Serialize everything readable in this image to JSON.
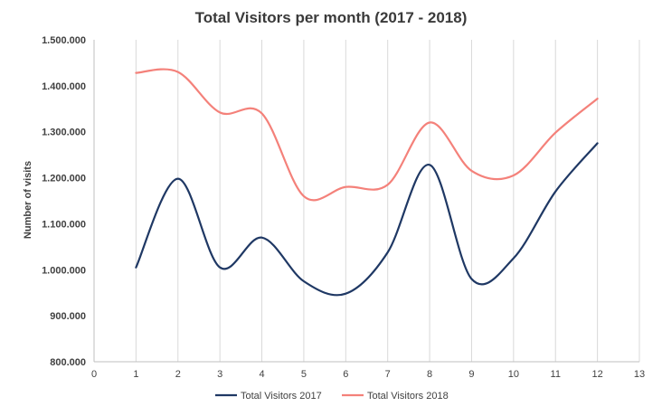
{
  "chart_data": {
    "type": "line",
    "title": "Total Visitors per month (2017 - 2018)",
    "xlabel": "",
    "ylabel": "Number of visits",
    "xlim": [
      0,
      13
    ],
    "ylim": [
      800000,
      1500000
    ],
    "x_ticks": [
      "0",
      "1",
      "2",
      "3",
      "4",
      "5",
      "6",
      "7",
      "8",
      "9",
      "10",
      "11",
      "12",
      "13"
    ],
    "y_ticks": [
      {
        "value": 800000,
        "label": "800.000"
      },
      {
        "value": 900000,
        "label": "900.000"
      },
      {
        "value": 1000000,
        "label": "1.000.000"
      },
      {
        "value": 1100000,
        "label": "1.100.000"
      },
      {
        "value": 1200000,
        "label": "1.200.000"
      },
      {
        "value": 1300000,
        "label": "1.300.000"
      },
      {
        "value": 1400000,
        "label": "1.400.000"
      },
      {
        "value": 1500000,
        "label": "1.500.000"
      }
    ],
    "grid": "vertical",
    "legend_position": "bottom",
    "x": [
      1,
      2,
      3,
      4,
      5,
      6,
      7,
      8,
      9,
      10,
      11,
      12
    ],
    "series": [
      {
        "name": "Total Visitors 2017",
        "color": "#1f3864",
        "values": [
          1005000,
          1198000,
          1005000,
          1070000,
          975000,
          948000,
          1038000,
          1228000,
          980000,
          1025000,
          1170000,
          1275000
        ]
      },
      {
        "name": "Total Visitors 2018",
        "color": "#f4817a",
        "values": [
          1428000,
          1430000,
          1342000,
          1340000,
          1160000,
          1180000,
          1185000,
          1320000,
          1215000,
          1205000,
          1298000,
          1372000
        ]
      }
    ]
  }
}
